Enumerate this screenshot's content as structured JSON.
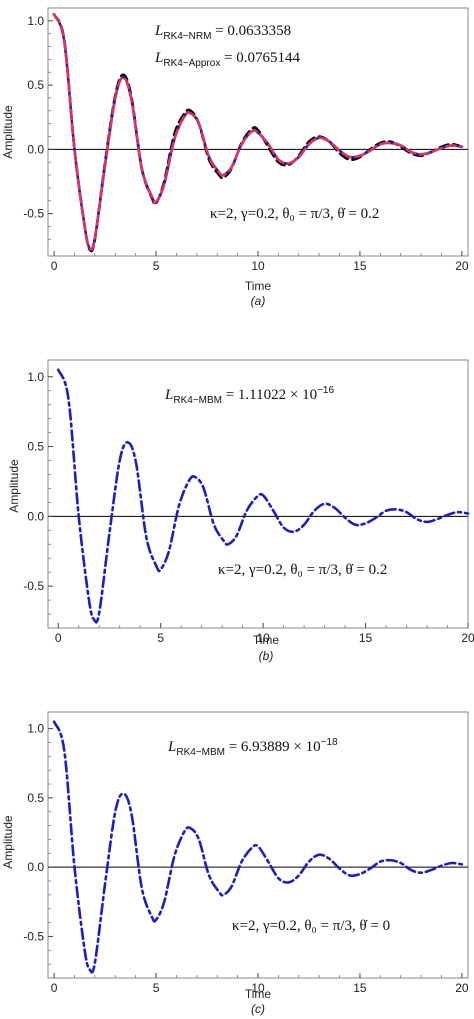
{
  "chart_data": [
    {
      "type": "line",
      "panel_label": "(a)",
      "xlabel": "Time",
      "ylabel": "Amplitude",
      "xlim": [
        -0.3,
        20.3
      ],
      "ylim": [
        -0.83,
        1.1
      ],
      "x_ticks": [
        0,
        5,
        10,
        15,
        20
      ],
      "y_ticks": [
        -0.5,
        0.0,
        0.5,
        1.0
      ],
      "x_tick_labels": [
        "0",
        "5",
        "10",
        "15",
        "20"
      ],
      "y_tick_labels": [
        "-0.5",
        "0.0",
        "0.5",
        "1.0"
      ],
      "grid": false,
      "zero_line": true,
      "series": [
        {
          "key": "rk4",
          "color": "#000000",
          "style": "dashed",
          "x": [
            0.0,
            0.5,
            1.0,
            1.5,
            1.75,
            2.0,
            2.5,
            3.0,
            3.4,
            3.8,
            4.3,
            4.8,
            5.0,
            5.4,
            5.9,
            6.4,
            6.7,
            7.1,
            7.6,
            8.1,
            8.3,
            8.7,
            9.2,
            9.7,
            10.0,
            10.5,
            11.0,
            11.5,
            12.0,
            12.5,
            13.0,
            13.5,
            14.0,
            14.5,
            15.0,
            15.5,
            16.0,
            16.5,
            17.0,
            17.5,
            18.0,
            18.5,
            19.0,
            19.5,
            20.0
          ],
          "y": [
            1.05,
            0.85,
            0.0,
            -0.6,
            -0.78,
            -0.7,
            -0.1,
            0.42,
            0.58,
            0.4,
            -0.15,
            -0.38,
            -0.42,
            -0.25,
            0.12,
            0.28,
            0.3,
            0.2,
            -0.08,
            -0.2,
            -0.22,
            -0.15,
            0.05,
            0.16,
            0.15,
            0.02,
            -0.1,
            -0.12,
            -0.05,
            0.06,
            0.1,
            0.06,
            -0.03,
            -0.08,
            -0.06,
            0.0,
            0.05,
            0.06,
            0.02,
            -0.03,
            -0.05,
            -0.02,
            0.02,
            0.04,
            0.02
          ]
        },
        {
          "key": "approx",
          "color": "#1f1fb4",
          "style": "solid",
          "x": [
            0.0,
            0.5,
            1.0,
            1.5,
            1.75,
            2.0,
            2.5,
            3.0,
            3.4,
            3.8,
            4.3,
            4.8,
            5.0,
            5.4,
            5.9,
            6.4,
            6.7,
            7.1,
            7.6,
            8.1,
            8.3,
            8.7,
            9.2,
            9.7,
            10.0,
            10.5,
            11.0,
            11.5,
            12.0,
            12.5,
            13.0,
            13.5,
            14.0,
            14.5,
            15.0,
            15.5,
            16.0,
            16.5,
            17.0,
            17.5,
            18.0,
            18.5,
            19.0,
            19.5,
            20.0
          ],
          "y": [
            1.05,
            0.84,
            0.0,
            -0.6,
            -0.77,
            -0.69,
            -0.12,
            0.4,
            0.56,
            0.38,
            -0.15,
            -0.37,
            -0.41,
            -0.27,
            0.08,
            0.26,
            0.28,
            0.2,
            -0.06,
            -0.18,
            -0.2,
            -0.14,
            0.04,
            0.14,
            0.13,
            0.04,
            -0.08,
            -0.11,
            -0.06,
            0.04,
            0.09,
            0.06,
            -0.01,
            -0.06,
            -0.05,
            -0.01,
            0.04,
            0.05,
            0.03,
            -0.02,
            -0.04,
            -0.02,
            0.01,
            0.03,
            0.02
          ]
        },
        {
          "key": "nrm",
          "color": "#e0335a",
          "style": "dashed",
          "x": [
            0.0,
            0.5,
            1.0,
            1.5,
            1.75,
            2.0,
            2.5,
            3.0,
            3.4,
            3.8,
            4.3,
            4.8,
            5.0,
            5.4,
            5.9,
            6.4,
            6.7,
            7.1,
            7.6,
            8.1,
            8.3,
            8.7,
            9.2,
            9.7,
            10.0,
            10.5,
            11.0,
            11.5,
            12.0,
            12.5,
            13.0,
            13.5,
            14.0,
            14.5,
            15.0,
            15.5,
            16.0,
            16.5,
            17.0,
            17.5,
            18.0,
            18.5,
            19.0,
            19.5,
            20.0
          ],
          "y": [
            1.05,
            0.84,
            0.0,
            -0.6,
            -0.77,
            -0.69,
            -0.12,
            0.4,
            0.56,
            0.38,
            -0.15,
            -0.37,
            -0.41,
            -0.27,
            0.08,
            0.26,
            0.28,
            0.2,
            -0.06,
            -0.18,
            -0.2,
            -0.14,
            0.04,
            0.14,
            0.13,
            0.04,
            -0.08,
            -0.11,
            -0.06,
            0.04,
            0.09,
            0.06,
            -0.01,
            -0.06,
            -0.05,
            -0.01,
            0.04,
            0.05,
            0.03,
            -0.02,
            -0.04,
            -0.02,
            0.01,
            0.03,
            0.02
          ]
        }
      ],
      "annotations": {
        "line1": {
          "main": "L",
          "sub": "RK4−NRM",
          "value": " = 0.0633358"
        },
        "line2": {
          "main": "L",
          "sub": "RK4−Approx",
          "value": " = 0.0765144"
        },
        "params": "κ=2,  γ=0.2,  θ₀ = π/3,  θ̇ = 0.2"
      }
    },
    {
      "type": "line",
      "panel_label": "(b)",
      "xlabel": "Time",
      "ylabel": "Amplitude",
      "xlim": [
        -0.5,
        20.0
      ],
      "ylim": [
        -0.8,
        1.12
      ],
      "x_ticks": [
        0,
        5,
        10,
        15,
        20
      ],
      "y_ticks": [
        -0.5,
        0.0,
        0.5,
        1.0
      ],
      "x_tick_labels": [
        "0",
        "5",
        "10",
        "15",
        "20"
      ],
      "y_tick_labels": [
        "-0.5",
        "0.0",
        "0.5",
        "1.0"
      ],
      "grid": false,
      "zero_line": true,
      "series": [
        {
          "key": "mbm",
          "color": "#1f1fb4",
          "style": "dashdot",
          "x": [
            0.0,
            0.5,
            1.0,
            1.5,
            1.75,
            2.0,
            2.5,
            3.0,
            3.4,
            3.8,
            4.3,
            4.8,
            5.0,
            5.4,
            5.9,
            6.4,
            6.7,
            7.1,
            7.6,
            8.1,
            8.3,
            8.7,
            9.2,
            9.7,
            10.0,
            10.5,
            11.0,
            11.5,
            12.0,
            12.5,
            13.0,
            13.5,
            14.0,
            14.5,
            15.0,
            15.5,
            16.0,
            16.5,
            17.0,
            17.5,
            18.0,
            18.5,
            19.0,
            19.5,
            20.0
          ],
          "y": [
            1.05,
            0.84,
            0.0,
            -0.6,
            -0.74,
            -0.69,
            -0.12,
            0.4,
            0.53,
            0.38,
            -0.15,
            -0.36,
            -0.38,
            -0.25,
            0.08,
            0.26,
            0.28,
            0.2,
            -0.06,
            -0.18,
            -0.2,
            -0.14,
            0.04,
            0.14,
            0.15,
            0.04,
            -0.08,
            -0.11,
            -0.06,
            0.04,
            0.09,
            0.06,
            -0.01,
            -0.06,
            -0.05,
            -0.01,
            0.04,
            0.05,
            0.03,
            -0.02,
            -0.04,
            -0.02,
            0.01,
            0.03,
            0.02
          ]
        }
      ],
      "annotations": {
        "line1": {
          "main": "L",
          "sub": "RK4−MBM",
          "value": " = 1.11022 × 10",
          "exp": "−16"
        },
        "params": "κ=2,  γ=0.2,  θ₀ = π/3,  θ̇ = 0.2"
      }
    },
    {
      "type": "line",
      "panel_label": "(c)",
      "xlabel": "Time",
      "ylabel": "Amplitude",
      "xlim": [
        -0.3,
        20.3
      ],
      "ylim": [
        -0.8,
        1.12
      ],
      "x_ticks": [
        0,
        5,
        10,
        15,
        20
      ],
      "y_ticks": [
        -0.5,
        0.0,
        0.5,
        1.0
      ],
      "x_tick_labels": [
        "0",
        "5",
        "10",
        "15",
        "20"
      ],
      "y_tick_labels": [
        "-0.5",
        "0.0",
        "0.5",
        "1.0"
      ],
      "grid": false,
      "zero_line": true,
      "series": [
        {
          "key": "mbm",
          "color": "#1f1fb4",
          "style": "dashdot",
          "x": [
            0.0,
            0.5,
            1.0,
            1.5,
            1.75,
            2.0,
            2.5,
            3.0,
            3.4,
            3.8,
            4.3,
            4.8,
            5.0,
            5.4,
            5.9,
            6.4,
            6.7,
            7.1,
            7.6,
            8.1,
            8.3,
            8.7,
            9.2,
            9.7,
            10.0,
            10.5,
            11.0,
            11.5,
            12.0,
            12.5,
            13.0,
            13.5,
            14.0,
            14.5,
            15.0,
            15.5,
            16.0,
            16.5,
            17.0,
            17.5,
            18.0,
            18.5,
            19.0,
            19.5,
            20.0
          ],
          "y": [
            1.05,
            0.84,
            0.0,
            -0.6,
            -0.74,
            -0.69,
            -0.12,
            0.4,
            0.53,
            0.38,
            -0.15,
            -0.36,
            -0.38,
            -0.25,
            0.08,
            0.26,
            0.28,
            0.2,
            -0.06,
            -0.18,
            -0.2,
            -0.14,
            0.04,
            0.14,
            0.15,
            0.04,
            -0.08,
            -0.11,
            -0.06,
            0.04,
            0.09,
            0.06,
            -0.01,
            -0.06,
            -0.05,
            -0.01,
            0.04,
            0.05,
            0.03,
            -0.02,
            -0.04,
            -0.02,
            0.01,
            0.03,
            0.02
          ]
        }
      ],
      "annotations": {
        "line1": {
          "main": "L",
          "sub": "RK4−MBM",
          "value": " = 6.93889 × 10",
          "exp": "−18"
        },
        "params": "κ=2,  γ=0.2,  θ₀ = π/3,  θ̇ = 0"
      }
    }
  ]
}
